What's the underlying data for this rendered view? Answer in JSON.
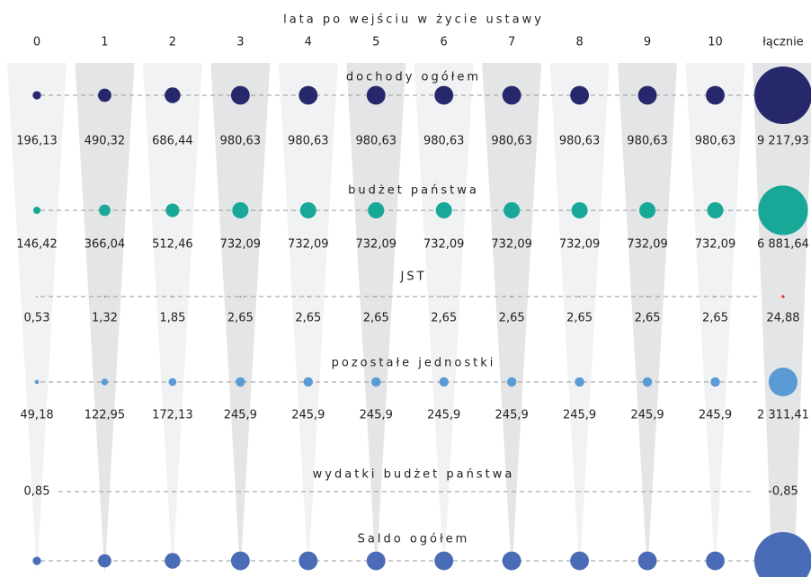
{
  "chart_data": {
    "type": "bubble_matrix",
    "x_label": "lata po wejściu w życie ustawy",
    "categories": [
      "0",
      "1",
      "2",
      "3",
      "4",
      "5",
      "6",
      "7",
      "8",
      "9",
      "10",
      "łącznie"
    ],
    "series": [
      {
        "name": "dochody ogółem",
        "color": "#27286b",
        "values": [
          196.13,
          490.32,
          686.44,
          980.63,
          980.63,
          980.63,
          980.63,
          980.63,
          980.63,
          980.63,
          980.63,
          9217.93
        ],
        "value_labels": [
          "196,13",
          "490,32",
          "686,44",
          "980,63",
          "980,63",
          "980,63",
          "980,63",
          "980,63",
          "980,63",
          "980,63",
          "980,63",
          "9 217,93"
        ]
      },
      {
        "name": "budżet państwa",
        "color": "#17a898",
        "values": [
          146.42,
          366.04,
          512.46,
          732.09,
          732.09,
          732.09,
          732.09,
          732.09,
          732.09,
          732.09,
          732.09,
          6881.64
        ],
        "value_labels": [
          "146,42",
          "366,04",
          "512,46",
          "732,09",
          "732,09",
          "732,09",
          "732,09",
          "732,09",
          "732,09",
          "732,09",
          "732,09",
          "6 881,64"
        ]
      },
      {
        "name": "JST",
        "color": "#e53935",
        "values": [
          0.53,
          1.32,
          1.85,
          2.65,
          2.65,
          2.65,
          2.65,
          2.65,
          2.65,
          2.65,
          2.65,
          24.88
        ],
        "value_labels": [
          "0,53",
          "1,32",
          "1,85",
          "2,65",
          "2,65",
          "2,65",
          "2,65",
          "2,65",
          "2,65",
          "2,65",
          "2,65",
          "24,88"
        ]
      },
      {
        "name": "pozostałe jednostki",
        "color": "#5b9bd5",
        "values": [
          49.18,
          122.95,
          172.13,
          245.9,
          245.9,
          245.9,
          245.9,
          245.9,
          245.9,
          245.9,
          245.9,
          2311.41
        ],
        "value_labels": [
          "49,18",
          "122,95",
          "172,13",
          "245,9",
          "245,9",
          "245,9",
          "245,9",
          "245,9",
          "245,9",
          "245,9",
          "245,9",
          "2 311,41"
        ]
      },
      {
        "name": "wydatki budżet państwa",
        "color": "#4a6bb5",
        "values": [
          0.85,
          null,
          null,
          null,
          null,
          null,
          null,
          null,
          null,
          null,
          null,
          -0.85
        ],
        "value_labels": [
          "0,85",
          null,
          null,
          null,
          null,
          null,
          null,
          null,
          null,
          null,
          null,
          "-0,85"
        ]
      },
      {
        "name": "Saldo ogółem",
        "color": "#4a6bb5",
        "values": [
          195.28,
          490.32,
          686.44,
          980.63,
          980.63,
          980.63,
          980.63,
          980.63,
          980.63,
          980.63,
          980.63,
          9217.08
        ]
      }
    ]
  }
}
